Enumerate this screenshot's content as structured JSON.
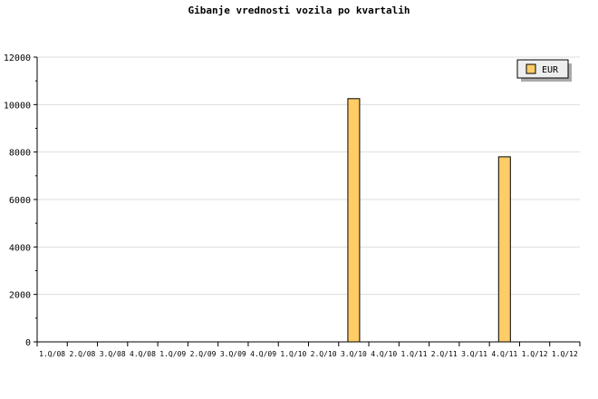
{
  "chart_data": {
    "type": "bar",
    "title": "Gibanje vrednosti vozila po kvartalih",
    "xlabel": "",
    "ylabel": "",
    "categories": [
      "1.Q/08",
      "2.Q/08",
      "3.Q/08",
      "4.Q/08",
      "1.Q/09",
      "2.Q/09",
      "3.Q/09",
      "4.Q/09",
      "1.Q/10",
      "2.Q/10",
      "3.Q/10",
      "4.Q/10",
      "1.Q/11",
      "2.Q/11",
      "3.Q/11",
      "4.Q/11",
      "1.Q/12",
      "1.Q/12"
    ],
    "series": [
      {
        "name": "EUR",
        "color": "#ffcc66",
        "values": [
          0,
          0,
          0,
          0,
          0,
          0,
          0,
          0,
          0,
          0,
          10250,
          0,
          0,
          0,
          0,
          7800,
          0,
          0
        ]
      }
    ],
    "ylim": [
      0,
      12000
    ],
    "yticks": [
      0,
      2000,
      4000,
      6000,
      8000,
      10000,
      12000
    ],
    "grid": true,
    "legend_position": "top-right"
  }
}
